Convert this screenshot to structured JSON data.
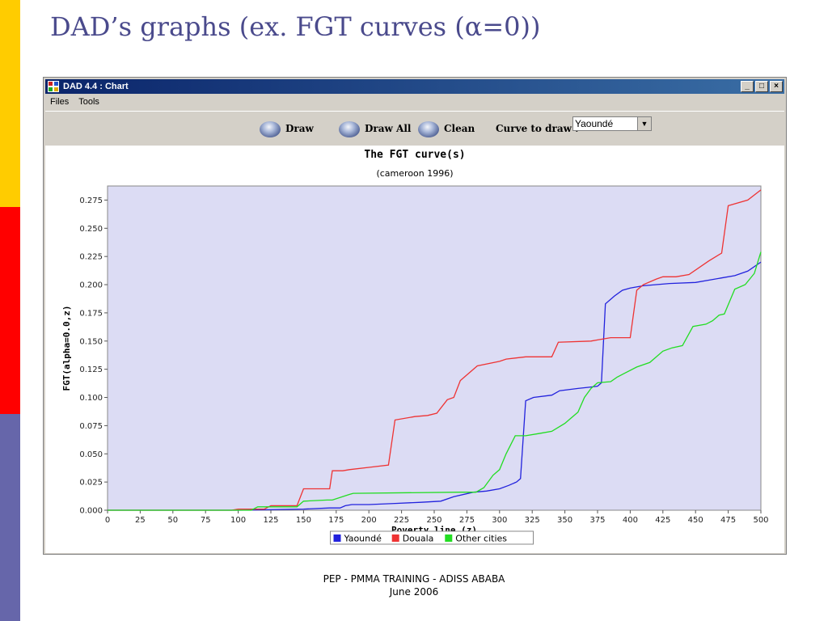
{
  "slide": {
    "title": "DAD’s graphs  (ex. FGT curves (α=0))",
    "footer_line1": "PEP - PMMA TRAINING - ADISS ABABA",
    "footer_line2": "June 2006"
  },
  "window": {
    "title": "DAD 4.4 : Chart",
    "controls": [
      "_",
      "□",
      "×"
    ],
    "app_icon": "dad-app-icon"
  },
  "menu": [
    "Files",
    "Tools"
  ],
  "toolbar": {
    "draw_label": "Draw",
    "draw_all_label": "Draw All",
    "clean_label": "Clean",
    "curve_label": "Curve to draw :",
    "curve_value": "Yaoundé",
    "button_icon": "sphere-icon"
  },
  "colors": {
    "Yaoundé": "#2222dd",
    "Douala": "#ee3333",
    "Other cities": "#22dd22",
    "plot_bg": "#dcdcf4"
  },
  "chart_data": {
    "type": "line",
    "title": "The FGT curve(s)",
    "subtitle": "(cameroon 1996)",
    "xlabel": "Poverty line (z)",
    "ylabel": "FGT(alpha=0.0,z)",
    "xlim": [
      0,
      500
    ],
    "ylim": [
      0,
      0.2875
    ],
    "x_ticks": [
      "0",
      "25",
      "50",
      "75",
      "100",
      "125",
      "150",
      "175",
      "200",
      "225",
      "250",
      "275",
      "300",
      "325",
      "350",
      "375",
      "400",
      "425",
      "450",
      "475",
      "500"
    ],
    "y_ticks": [
      "0.000",
      "0.025",
      "0.050",
      "0.075",
      "0.100",
      "0.125",
      "0.150",
      "0.175",
      "0.200",
      "0.225",
      "0.250",
      "0.275"
    ],
    "legend_position": "bottom-center",
    "series": [
      {
        "name": "Yaoundé",
        "x": [
          0,
          95,
          100,
          150,
          170,
          178,
          182,
          187,
          200,
          220,
          240,
          255,
          265,
          280,
          290,
          300,
          307,
          313,
          316,
          320,
          326,
          340,
          346,
          360,
          368,
          375,
          378,
          381,
          388,
          394,
          400,
          410,
          420,
          430,
          450,
          460,
          470,
          480,
          490,
          500
        ],
        "y": [
          0,
          0,
          0,
          0.001,
          0.002,
          0.002,
          0.004,
          0.005,
          0.005,
          0.006,
          0.007,
          0.008,
          0.012,
          0.016,
          0.017,
          0.019,
          0.022,
          0.025,
          0.028,
          0.097,
          0.1,
          0.102,
          0.106,
          0.108,
          0.109,
          0.11,
          0.113,
          0.183,
          0.19,
          0.195,
          0.197,
          0.199,
          0.2,
          0.201,
          0.202,
          0.204,
          0.206,
          0.208,
          0.212,
          0.22
        ]
      },
      {
        "name": "Douala",
        "x": [
          0,
          95,
          100,
          120,
          125,
          145,
          150,
          170,
          172,
          180,
          185,
          200,
          215,
          220,
          235,
          245,
          252,
          260,
          265,
          270,
          283,
          300,
          305,
          320,
          330,
          340,
          345,
          370,
          375,
          385,
          400,
          405,
          410,
          420,
          425,
          435,
          445,
          460,
          470,
          475,
          490,
          500
        ],
        "y": [
          0,
          0,
          0.001,
          0.001,
          0.004,
          0.004,
          0.019,
          0.019,
          0.035,
          0.035,
          0.036,
          0.038,
          0.04,
          0.08,
          0.083,
          0.084,
          0.086,
          0.098,
          0.1,
          0.115,
          0.128,
          0.132,
          0.134,
          0.136,
          0.136,
          0.136,
          0.149,
          0.15,
          0.151,
          0.153,
          0.153,
          0.195,
          0.2,
          0.205,
          0.207,
          0.207,
          0.209,
          0.221,
          0.228,
          0.27,
          0.275,
          0.284
        ]
      },
      {
        "name": "Other cities",
        "x": [
          0,
          110,
          115,
          145,
          150,
          168,
          172,
          185,
          188,
          270,
          282,
          288,
          295,
          300,
          305,
          312,
          320,
          330,
          340,
          350,
          355,
          360,
          365,
          370,
          375,
          385,
          390,
          395,
          405,
          415,
          425,
          432,
          440,
          448,
          458,
          463,
          468,
          472,
          480,
          488,
          495,
          500
        ],
        "y": [
          0,
          0,
          0.003,
          0.003,
          0.008,
          0.009,
          0.009,
          0.014,
          0.015,
          0.016,
          0.016,
          0.02,
          0.031,
          0.036,
          0.05,
          0.066,
          0.066,
          0.068,
          0.07,
          0.077,
          0.082,
          0.087,
          0.1,
          0.108,
          0.113,
          0.114,
          0.118,
          0.121,
          0.127,
          0.131,
          0.141,
          0.144,
          0.146,
          0.163,
          0.165,
          0.168,
          0.173,
          0.174,
          0.196,
          0.2,
          0.21,
          0.229
        ]
      }
    ]
  }
}
